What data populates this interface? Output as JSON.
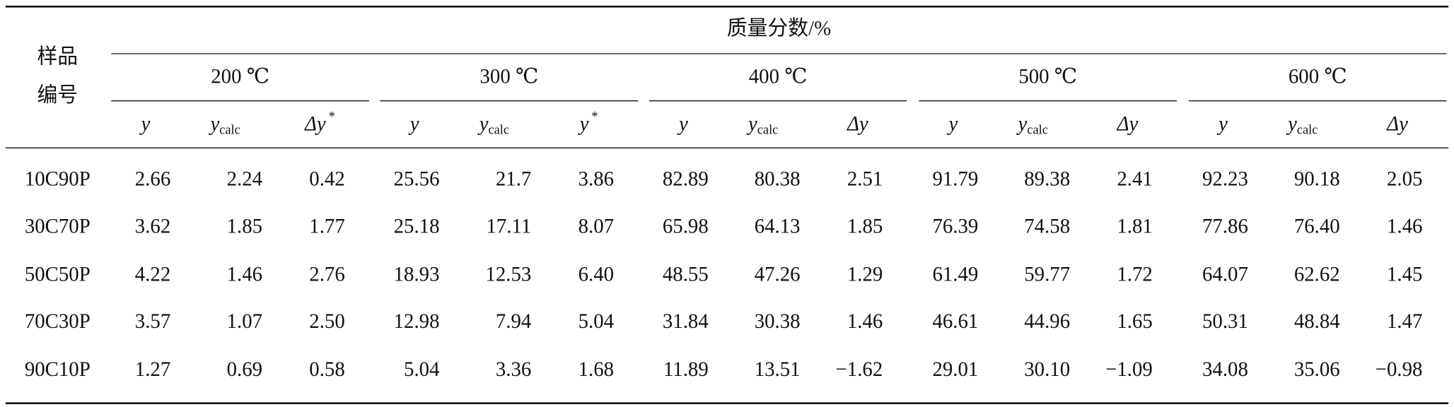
{
  "table": {
    "title": "质量分数/%",
    "sample_label": [
      "样品",
      "编号"
    ],
    "groups": [
      {
        "label": "200 ℃",
        "columns": [
          {
            "main": "y"
          },
          {
            "main": "y",
            "sub": "calc"
          },
          {
            "main": "Δy",
            "sup": "*"
          }
        ]
      },
      {
        "label": "300 ℃",
        "columns": [
          {
            "main": "y"
          },
          {
            "main": "y",
            "sub": "calc"
          },
          {
            "main": "y",
            "sup": "*"
          }
        ]
      },
      {
        "label": "400 ℃",
        "columns": [
          {
            "main": "y"
          },
          {
            "main": "y",
            "sub": "calc"
          },
          {
            "main": "Δy"
          }
        ]
      },
      {
        "label": "500 ℃",
        "columns": [
          {
            "main": "y"
          },
          {
            "main": "y",
            "sub": "calc"
          },
          {
            "main": "Δy"
          }
        ]
      },
      {
        "label": "600 ℃",
        "columns": [
          {
            "main": "y"
          },
          {
            "main": "y",
            "sub": "calc"
          },
          {
            "main": "Δy"
          }
        ]
      }
    ],
    "rows": [
      [
        "10C90P",
        "2.66",
        "2.24",
        "0.42",
        "25.56",
        "21.7",
        "3.86",
        "82.89",
        "80.38",
        "2.51",
        "91.79",
        "89.38",
        "2.41",
        "92.23",
        "90.18",
        "2.05"
      ],
      [
        "30C70P",
        "3.62",
        "1.85",
        "1.77",
        "25.18",
        "17.11",
        "8.07",
        "65.98",
        "64.13",
        "1.85",
        "76.39",
        "74.58",
        "1.81",
        "77.86",
        "76.40",
        "1.46"
      ],
      [
        "50C50P",
        "4.22",
        "1.46",
        "2.76",
        "18.93",
        "12.53",
        "6.40",
        "48.55",
        "47.26",
        "1.29",
        "61.49",
        "59.77",
        "1.72",
        "64.07",
        "62.62",
        "1.45"
      ],
      [
        "70C30P",
        "3.57",
        "1.07",
        "2.50",
        "12.98",
        "7.94",
        "5.04",
        "31.84",
        "30.38",
        "1.46",
        "46.61",
        "44.96",
        "1.65",
        "50.31",
        "48.84",
        "1.47"
      ],
      [
        "90C10P",
        "1.27",
        "0.69",
        "0.58",
        "5.04",
        "3.36",
        "1.68",
        "11.89",
        "13.51",
        "−1.62",
        "29.01",
        "30.10",
        "−1.09",
        "34.08",
        "35.06",
        "−0.98"
      ]
    ]
  }
}
